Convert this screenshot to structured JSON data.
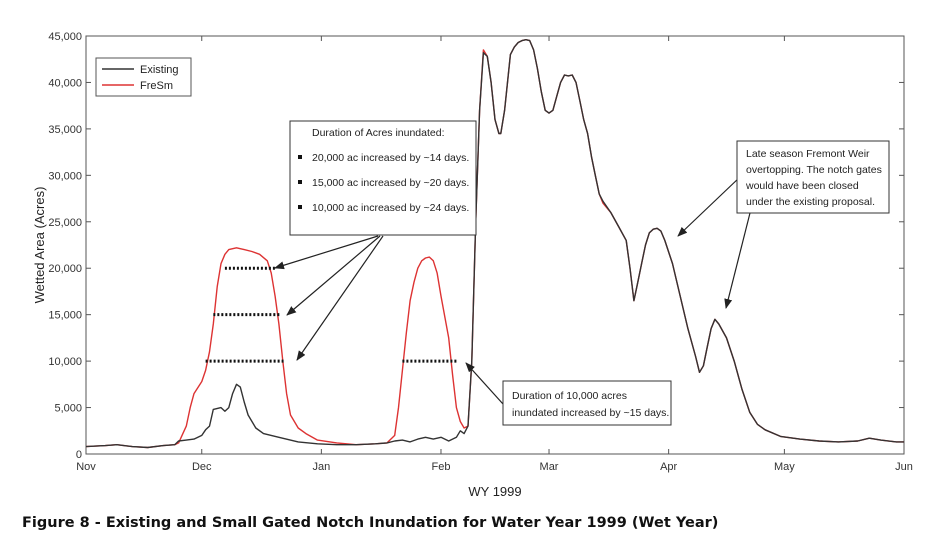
{
  "caption": "Figure 8 - Existing and Small Gated Notch Inundation for Water Year 1999 (Wet Year)",
  "chart_data": {
    "type": "line",
    "xlabel": "WY 1999",
    "ylabel": "Wetted Area (Acres)",
    "x_range_days": [
      0,
      212
    ],
    "ylim": [
      0,
      45000
    ],
    "x_ticks": [
      {
        "label": "Nov",
        "day": 0
      },
      {
        "label": "Dec",
        "day": 30
      },
      {
        "label": "Jan",
        "day": 61
      },
      {
        "label": "Feb",
        "day": 92
      },
      {
        "label": "Mar",
        "day": 120
      },
      {
        "label": "Apr",
        "day": 151
      },
      {
        "label": "May",
        "day": 181
      },
      {
        "label": "Jun",
        "day": 212
      }
    ],
    "y_ticks": [
      {
        "label": "0",
        "value": 0
      },
      {
        "label": "5,000",
        "value": 5000
      },
      {
        "label": "10,000",
        "value": 10000
      },
      {
        "label": "15,000",
        "value": 15000
      },
      {
        "label": "20,000",
        "value": 20000
      },
      {
        "label": "25,000",
        "value": 25000
      },
      {
        "label": "30,000",
        "value": 30000
      },
      {
        "label": "35,000",
        "value": 35000
      },
      {
        "label": "40,000",
        "value": 40000
      },
      {
        "label": "45,000",
        "value": 45000
      }
    ],
    "grid": false,
    "legend_position": "top-left",
    "series": [
      {
        "name": "Existing",
        "color": "#333333",
        "points": [
          [
            0,
            800
          ],
          [
            5,
            900
          ],
          [
            8,
            1000
          ],
          [
            12,
            800
          ],
          [
            16,
            700
          ],
          [
            20,
            900
          ],
          [
            23,
            1000
          ],
          [
            24,
            1400
          ],
          [
            26,
            1500
          ],
          [
            28,
            1600
          ],
          [
            30,
            2000
          ],
          [
            31,
            2600
          ],
          [
            32,
            3000
          ],
          [
            33,
            4800
          ],
          [
            35,
            5000
          ],
          [
            36,
            4600
          ],
          [
            37,
            5000
          ],
          [
            38,
            6500
          ],
          [
            39,
            7500
          ],
          [
            40,
            7200
          ],
          [
            41,
            5600
          ],
          [
            42,
            4200
          ],
          [
            44,
            2800
          ],
          [
            46,
            2200
          ],
          [
            50,
            1800
          ],
          [
            55,
            1300
          ],
          [
            60,
            1100
          ],
          [
            65,
            1000
          ],
          [
            70,
            1000
          ],
          [
            75,
            1100
          ],
          [
            78,
            1200
          ],
          [
            80,
            1400
          ],
          [
            82,
            1500
          ],
          [
            84,
            1300
          ],
          [
            86,
            1600
          ],
          [
            88,
            1800
          ],
          [
            90,
            1600
          ],
          [
            92,
            1800
          ],
          [
            94,
            1400
          ],
          [
            96,
            1800
          ],
          [
            97,
            2500
          ],
          [
            98,
            2200
          ],
          [
            99,
            3000
          ],
          [
            100,
            10000
          ],
          [
            101,
            25000
          ],
          [
            102,
            37000
          ],
          [
            103,
            43200
          ],
          [
            104,
            42800
          ],
          [
            105,
            40000
          ],
          [
            106,
            36000
          ],
          [
            107,
            34500
          ],
          [
            107.5,
            34500
          ],
          [
            108.5,
            37000
          ],
          [
            110,
            43000
          ],
          [
            111,
            43800
          ],
          [
            112,
            44300
          ],
          [
            113,
            44500
          ],
          [
            114,
            44600
          ],
          [
            115,
            44500
          ],
          [
            116,
            43500
          ],
          [
            117,
            41500
          ],
          [
            118,
            39000
          ],
          [
            119,
            37000
          ],
          [
            120,
            36700
          ],
          [
            121,
            37000
          ],
          [
            122,
            38500
          ],
          [
            123,
            40000
          ],
          [
            124,
            40800
          ],
          [
            125,
            40700
          ],
          [
            126,
            40800
          ],
          [
            127,
            40000
          ],
          [
            128,
            38000
          ],
          [
            129,
            36000
          ],
          [
            130,
            34500
          ],
          [
            131,
            32000
          ],
          [
            132,
            30000
          ],
          [
            133,
            28000
          ],
          [
            134,
            27200
          ],
          [
            136,
            26000
          ],
          [
            138,
            24500
          ],
          [
            140,
            23000
          ],
          [
            141,
            20000
          ],
          [
            142,
            16500
          ],
          [
            143,
            18500
          ],
          [
            144,
            20500
          ],
          [
            145,
            22500
          ],
          [
            146,
            23800
          ],
          [
            147,
            24200
          ],
          [
            148,
            24300
          ],
          [
            149,
            24000
          ],
          [
            150,
            23000
          ],
          [
            152,
            20500
          ],
          [
            154,
            17000
          ],
          [
            156,
            13500
          ],
          [
            158,
            10500
          ],
          [
            159,
            8800
          ],
          [
            160,
            9500
          ],
          [
            161,
            11500
          ],
          [
            162,
            13500
          ],
          [
            163,
            14500
          ],
          [
            164,
            14000
          ],
          [
            166,
            12500
          ],
          [
            168,
            10000
          ],
          [
            170,
            7000
          ],
          [
            172,
            4500
          ],
          [
            174,
            3200
          ],
          [
            176,
            2600
          ],
          [
            180,
            1900
          ],
          [
            185,
            1600
          ],
          [
            190,
            1400
          ],
          [
            195,
            1300
          ],
          [
            200,
            1400
          ],
          [
            203,
            1700
          ],
          [
            206,
            1500
          ],
          [
            210,
            1300
          ],
          [
            212,
            1300
          ]
        ]
      },
      {
        "name": "FreSm",
        "color": "#dd3333",
        "points": [
          [
            0,
            800
          ],
          [
            5,
            900
          ],
          [
            8,
            1000
          ],
          [
            12,
            800
          ],
          [
            16,
            700
          ],
          [
            20,
            900
          ],
          [
            23,
            1000
          ],
          [
            24,
            1200
          ],
          [
            26,
            3000
          ],
          [
            27,
            5000
          ],
          [
            28,
            6500
          ],
          [
            30,
            7800
          ],
          [
            31,
            9000
          ],
          [
            32,
            11000
          ],
          [
            33,
            14000
          ],
          [
            34,
            18000
          ],
          [
            35,
            20500
          ],
          [
            36,
            21500
          ],
          [
            37,
            22000
          ],
          [
            38,
            22100
          ],
          [
            39,
            22200
          ],
          [
            40,
            22100
          ],
          [
            41,
            22000
          ],
          [
            43,
            21800
          ],
          [
            45,
            21500
          ],
          [
            47,
            20800
          ],
          [
            48,
            19500
          ],
          [
            49,
            17000
          ],
          [
            50,
            14000
          ],
          [
            51,
            10000
          ],
          [
            52,
            6500
          ],
          [
            53,
            4200
          ],
          [
            55,
            2800
          ],
          [
            57,
            2200
          ],
          [
            60,
            1500
          ],
          [
            65,
            1200
          ],
          [
            70,
            1000
          ],
          [
            75,
            1100
          ],
          [
            78,
            1200
          ],
          [
            80,
            2000
          ],
          [
            81,
            5000
          ],
          [
            82,
            9000
          ],
          [
            83,
            13000
          ],
          [
            84,
            16500
          ],
          [
            85,
            18500
          ],
          [
            86,
            20000
          ],
          [
            87,
            20800
          ],
          [
            88,
            21100
          ],
          [
            89,
            21200
          ],
          [
            90,
            20800
          ],
          [
            91,
            19500
          ],
          [
            92,
            17000
          ],
          [
            94,
            12500
          ],
          [
            95,
            8500
          ],
          [
            96,
            5000
          ],
          [
            97,
            3500
          ],
          [
            98,
            2800
          ],
          [
            99,
            3000
          ],
          [
            100,
            10000
          ],
          [
            101,
            25000
          ],
          [
            102,
            37000
          ],
          [
            103,
            43500
          ],
          [
            104,
            42800
          ],
          [
            105,
            40000
          ],
          [
            106,
            36000
          ],
          [
            107,
            34500
          ],
          [
            107.5,
            34500
          ],
          [
            108.5,
            37000
          ],
          [
            110,
            43000
          ],
          [
            111,
            43800
          ],
          [
            112,
            44300
          ],
          [
            113,
            44500
          ],
          [
            114,
            44600
          ],
          [
            115,
            44500
          ],
          [
            116,
            43500
          ],
          [
            117,
            41500
          ],
          [
            118,
            39000
          ],
          [
            119,
            37000
          ],
          [
            120,
            36700
          ],
          [
            121,
            37000
          ],
          [
            122,
            38500
          ],
          [
            123,
            40000
          ],
          [
            124,
            40800
          ],
          [
            125,
            40700
          ],
          [
            126,
            40800
          ],
          [
            127,
            40000
          ],
          [
            128,
            38000
          ],
          [
            129,
            36000
          ],
          [
            130,
            34500
          ],
          [
            131,
            32000
          ],
          [
            132,
            30000
          ],
          [
            133,
            28000
          ],
          [
            134,
            27000
          ],
          [
            136,
            26000
          ],
          [
            138,
            24500
          ],
          [
            140,
            23000
          ],
          [
            141,
            20000
          ],
          [
            142,
            16500
          ],
          [
            143,
            18500
          ],
          [
            144,
            20500
          ],
          [
            145,
            22500
          ],
          [
            146,
            23800
          ],
          [
            147,
            24200
          ],
          [
            148,
            24300
          ],
          [
            149,
            24000
          ],
          [
            150,
            23000
          ],
          [
            152,
            20500
          ],
          [
            154,
            17000
          ],
          [
            156,
            13500
          ],
          [
            158,
            10500
          ],
          [
            159,
            8800
          ],
          [
            160,
            9500
          ],
          [
            161,
            11500
          ],
          [
            162,
            13500
          ],
          [
            163,
            14500
          ],
          [
            164,
            14000
          ],
          [
            166,
            12500
          ],
          [
            168,
            10000
          ],
          [
            170,
            7000
          ],
          [
            172,
            4500
          ],
          [
            174,
            3200
          ],
          [
            176,
            2600
          ],
          [
            180,
            1900
          ],
          [
            185,
            1600
          ],
          [
            190,
            1400
          ],
          [
            195,
            1300
          ],
          [
            200,
            1400
          ],
          [
            203,
            1700
          ],
          [
            206,
            1500
          ],
          [
            210,
            1300
          ],
          [
            212,
            1300
          ]
        ]
      }
    ],
    "dotted_markers": [
      {
        "y": 20000,
        "x1": 36,
        "x2": 49
      },
      {
        "y": 15000,
        "x1": 33,
        "x2": 50.5
      },
      {
        "y": 10000,
        "x1": 31,
        "x2": 51.2
      },
      {
        "y": 10000,
        "x1": 82,
        "x2": 96
      }
    ],
    "annotations": [
      {
        "id": "box1",
        "lines": [
          {
            "bullet": false,
            "text": "Duration of Acres inundated:"
          },
          {
            "bullet": true,
            "text": "20,000 ac increased by ~14 days."
          },
          {
            "bullet": true,
            "text": "15,000 ac increased by ~20 days."
          },
          {
            "bullet": true,
            "text": "10,000 ac increased by ~24 days."
          }
        ]
      },
      {
        "id": "box2",
        "lines": [
          {
            "bullet": false,
            "text": "Duration of 10,000 acres"
          },
          {
            "bullet": false,
            "text": "inundated increased by ~15 days."
          }
        ]
      },
      {
        "id": "box3",
        "lines": [
          {
            "bullet": false,
            "text": "Late season Fremont Weir"
          },
          {
            "bullet": false,
            "text": "overtopping. The notch gates"
          },
          {
            "bullet": false,
            "text": "would have been closed"
          },
          {
            "bullet": false,
            "text": "under the existing proposal."
          }
        ]
      }
    ]
  }
}
